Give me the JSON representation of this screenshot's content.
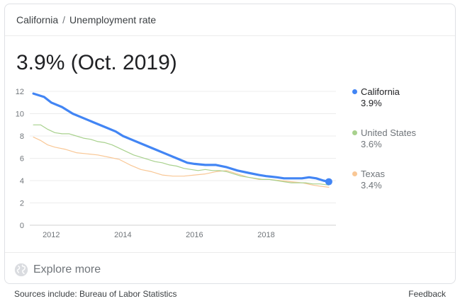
{
  "breadcrumb": {
    "parent": "California",
    "separator": "/",
    "current": "Unemployment rate"
  },
  "headline": "3.9% (Oct. 2019)",
  "chart_data": {
    "type": "line",
    "xlim": [
      2011.4,
      2019.95
    ],
    "ylim": [
      0,
      12
    ],
    "y_ticks": [
      "0",
      "2",
      "4",
      "6",
      "8",
      "10",
      "12"
    ],
    "x_ticks": [
      "2012",
      "2014",
      "2016",
      "2018"
    ],
    "grid": true,
    "legend_position": "right",
    "series": [
      {
        "name": "California",
        "current_value": "3.9%",
        "color": "#4285f4",
        "x": [
          2011.5,
          2011.8,
          2012.0,
          2012.3,
          2012.6,
          2012.9,
          2013.2,
          2013.5,
          2013.8,
          2014.0,
          2014.3,
          2014.6,
          2014.9,
          2015.2,
          2015.5,
          2015.8,
          2016.0,
          2016.3,
          2016.6,
          2016.9,
          2017.2,
          2017.5,
          2017.8,
          2018.0,
          2018.3,
          2018.5,
          2018.8,
          2019.0,
          2019.2,
          2019.4,
          2019.6,
          2019.75
        ],
        "y": [
          11.8,
          11.5,
          11.0,
          10.6,
          10.0,
          9.6,
          9.2,
          8.8,
          8.4,
          8.0,
          7.6,
          7.2,
          6.8,
          6.4,
          6.0,
          5.6,
          5.5,
          5.4,
          5.4,
          5.2,
          4.9,
          4.7,
          4.5,
          4.4,
          4.3,
          4.2,
          4.2,
          4.2,
          4.3,
          4.2,
          4.0,
          3.9
        ]
      },
      {
        "name": "United States",
        "current_value": "3.6%",
        "color": "#a8d18d",
        "x": [
          2011.5,
          2011.7,
          2011.9,
          2012.1,
          2012.3,
          2012.5,
          2012.7,
          2012.9,
          2013.1,
          2013.3,
          2013.5,
          2013.7,
          2013.9,
          2014.1,
          2014.3,
          2014.5,
          2014.7,
          2014.9,
          2015.1,
          2015.3,
          2015.5,
          2015.7,
          2015.9,
          2016.1,
          2016.3,
          2016.5,
          2016.7,
          2016.9,
          2017.1,
          2017.3,
          2017.5,
          2017.7,
          2017.9,
          2018.1,
          2018.3,
          2018.5,
          2018.7,
          2018.9,
          2019.1,
          2019.3,
          2019.5,
          2019.75
        ],
        "y": [
          9.0,
          9.0,
          8.6,
          8.3,
          8.2,
          8.2,
          8.0,
          7.8,
          7.7,
          7.5,
          7.4,
          7.2,
          6.9,
          6.6,
          6.3,
          6.1,
          5.9,
          5.7,
          5.6,
          5.4,
          5.3,
          5.1,
          5.0,
          4.9,
          5.0,
          4.9,
          4.9,
          4.8,
          4.6,
          4.4,
          4.3,
          4.2,
          4.1,
          4.1,
          4.0,
          3.9,
          3.8,
          3.8,
          3.8,
          3.7,
          3.7,
          3.6
        ]
      },
      {
        "name": "Texas",
        "current_value": "3.4%",
        "color": "#f9c795",
        "x": [
          2011.5,
          2011.7,
          2011.9,
          2012.1,
          2012.4,
          2012.7,
          2013.0,
          2013.3,
          2013.6,
          2013.9,
          2014.2,
          2014.5,
          2014.8,
          2015.1,
          2015.4,
          2015.7,
          2016.0,
          2016.3,
          2016.6,
          2016.9,
          2017.2,
          2017.5,
          2017.8,
          2018.1,
          2018.4,
          2018.7,
          2019.0,
          2019.3,
          2019.5,
          2019.75
        ],
        "y": [
          7.9,
          7.6,
          7.2,
          7.0,
          6.8,
          6.5,
          6.4,
          6.3,
          6.1,
          5.9,
          5.4,
          5.0,
          4.8,
          4.5,
          4.4,
          4.4,
          4.5,
          4.6,
          4.8,
          4.9,
          4.6,
          4.3,
          4.1,
          4.1,
          4.0,
          3.9,
          3.8,
          3.6,
          3.5,
          3.4
        ]
      }
    ]
  },
  "explore_label": "Explore more",
  "sources": "Sources include: Bureau of Labor Statistics",
  "feedback": "Feedback"
}
